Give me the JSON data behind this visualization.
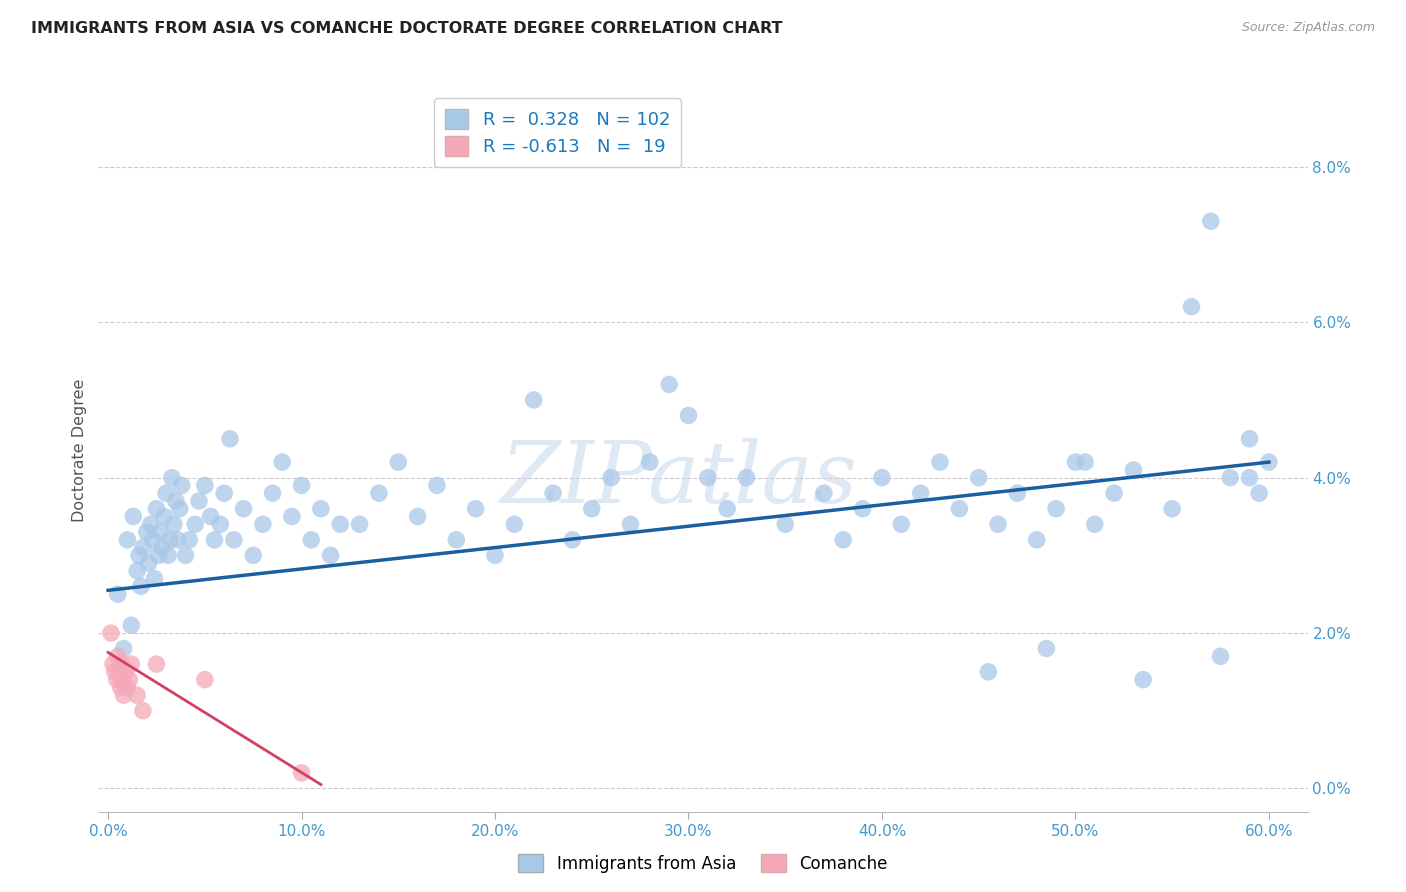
{
  "title": "IMMIGRANTS FROM ASIA VS COMANCHE DOCTORATE DEGREE CORRELATION CHART",
  "source": "Source: ZipAtlas.com",
  "ylabel": "Doctorate Degree",
  "x_tick_labels": [
    "0.0%",
    "10.0%",
    "20.0%",
    "30.0%",
    "40.0%",
    "50.0%",
    "60.0%"
  ],
  "x_tick_values": [
    0,
    10,
    20,
    30,
    40,
    50,
    60
  ],
  "y_tick_labels": [
    "0.0%",
    "2.0%",
    "4.0%",
    "6.0%",
    "8.0%"
  ],
  "y_tick_values": [
    0,
    2,
    4,
    6,
    8
  ],
  "xlim": [
    -0.5,
    62
  ],
  "ylim": [
    -0.3,
    9.0
  ],
  "r_blue": 0.328,
  "n_blue": 102,
  "r_pink": -0.613,
  "n_pink": 19,
  "blue_color": "#a8c8e8",
  "pink_color": "#f4a8b8",
  "blue_line_color": "#1a5fa0",
  "pink_line_color": "#d44060",
  "tick_color": "#4499cc",
  "legend_text_color": "#1a7abf",
  "watermark": "ZIPatlas",
  "blue_line": [
    0.0,
    2.55,
    60.0,
    4.2
  ],
  "pink_line": [
    0.0,
    1.75,
    11.0,
    0.05
  ],
  "blue_x": [
    0.5,
    0.8,
    1.0,
    1.2,
    1.3,
    1.5,
    1.6,
    1.7,
    1.8,
    2.0,
    2.1,
    2.2,
    2.3,
    2.4,
    2.5,
    2.6,
    2.7,
    2.8,
    2.9,
    3.0,
    3.1,
    3.2,
    3.3,
    3.4,
    3.5,
    3.6,
    3.7,
    3.8,
    4.0,
    4.2,
    4.5,
    4.7,
    5.0,
    5.3,
    5.5,
    5.8,
    6.0,
    6.3,
    6.5,
    7.0,
    7.5,
    8.0,
    8.5,
    9.0,
    9.5,
    10.0,
    10.5,
    11.0,
    11.5,
    12.0,
    13.0,
    14.0,
    15.0,
    16.0,
    17.0,
    18.0,
    19.0,
    20.0,
    21.0,
    22.0,
    23.0,
    24.0,
    25.0,
    26.0,
    27.0,
    28.0,
    29.0,
    30.0,
    31.0,
    32.0,
    33.0,
    35.0,
    37.0,
    38.0,
    39.0,
    40.0,
    41.0,
    42.0,
    43.0,
    44.0,
    45.0,
    46.0,
    47.0,
    48.0,
    49.0,
    50.0,
    51.0,
    52.0,
    53.0,
    55.0,
    56.0,
    57.0,
    58.0,
    59.0,
    59.5,
    60.0,
    45.5,
    48.5,
    50.5,
    53.5,
    57.5,
    59.0
  ],
  "blue_y": [
    2.5,
    1.8,
    3.2,
    2.1,
    3.5,
    2.8,
    3.0,
    2.6,
    3.1,
    3.3,
    2.9,
    3.4,
    3.2,
    2.7,
    3.6,
    3.0,
    3.3,
    3.1,
    3.5,
    3.8,
    3.0,
    3.2,
    4.0,
    3.4,
    3.7,
    3.2,
    3.6,
    3.9,
    3.0,
    3.2,
    3.4,
    3.7,
    3.9,
    3.5,
    3.2,
    3.4,
    3.8,
    4.5,
    3.2,
    3.6,
    3.0,
    3.4,
    3.8,
    4.2,
    3.5,
    3.9,
    3.2,
    3.6,
    3.0,
    3.4,
    3.4,
    3.8,
    4.2,
    3.5,
    3.9,
    3.2,
    3.6,
    3.0,
    3.4,
    5.0,
    3.8,
    3.2,
    3.6,
    4.0,
    3.4,
    4.2,
    5.2,
    4.8,
    4.0,
    3.6,
    4.0,
    3.4,
    3.8,
    3.2,
    3.6,
    4.0,
    3.4,
    3.8,
    4.2,
    3.6,
    4.0,
    3.4,
    3.8,
    3.2,
    3.6,
    4.2,
    3.4,
    3.8,
    4.1,
    3.6,
    6.2,
    7.3,
    4.0,
    4.5,
    3.8,
    4.2,
    1.5,
    1.8,
    4.2,
    1.4,
    1.7,
    4.0
  ],
  "pink_x": [
    0.15,
    0.25,
    0.35,
    0.45,
    0.5,
    0.6,
    0.65,
    0.7,
    0.75,
    0.8,
    0.9,
    1.0,
    1.1,
    1.2,
    1.5,
    1.8,
    2.5,
    5.0,
    10.0
  ],
  "pink_y": [
    2.0,
    1.6,
    1.5,
    1.4,
    1.7,
    1.5,
    1.3,
    1.6,
    1.4,
    1.2,
    1.5,
    1.3,
    1.4,
    1.6,
    1.2,
    1.0,
    1.6,
    1.4,
    0.2
  ]
}
